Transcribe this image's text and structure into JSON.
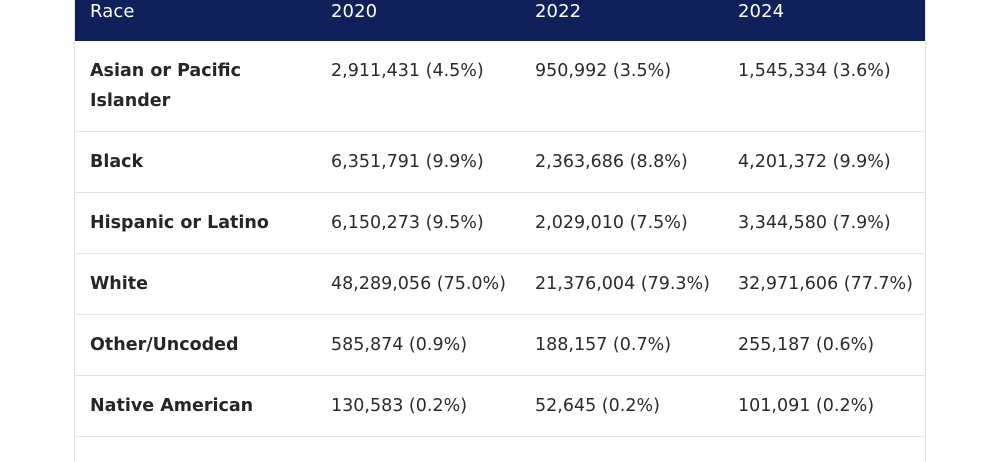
{
  "table": {
    "headers": [
      "Race",
      "2020",
      "2022",
      "2024"
    ],
    "rows": [
      {
        "race": "Asian or Pacific Islander",
        "y2020": "2,911,431 (4.5%)",
        "y2022": "950,992 (3.5%)",
        "y2024": "1,545,334 (3.6%)"
      },
      {
        "race": "Black",
        "y2020": "6,351,791 (9.9%)",
        "y2022": "2,363,686 (8.8%)",
        "y2024": "4,201,372 (9.9%)"
      },
      {
        "race": "Hispanic or Latino",
        "y2020": "6,150,273 (9.5%)",
        "y2022": "2,029,010 (7.5%)",
        "y2024": "3,344,580 (7.9%)"
      },
      {
        "race": "White",
        "y2020": "48,289,056 (75.0%)",
        "y2022": "21,376,004 (79.3%)",
        "y2024": "32,971,606 (77.7%)"
      },
      {
        "race": "Other/Uncoded",
        "y2020": "585,874 (0.9%)",
        "y2022": "188,157 (0.7%)",
        "y2024": "255,187 (0.6%)"
      },
      {
        "race": "Native American",
        "y2020": "130,583 (0.2%)",
        "y2022": "52,645 (0.2%)",
        "y2024": "101,091 (0.2%)"
      }
    ]
  },
  "colors": {
    "header_background": "#10205a",
    "header_text": "#ffffff",
    "row_divider": "#e3e3e3"
  }
}
